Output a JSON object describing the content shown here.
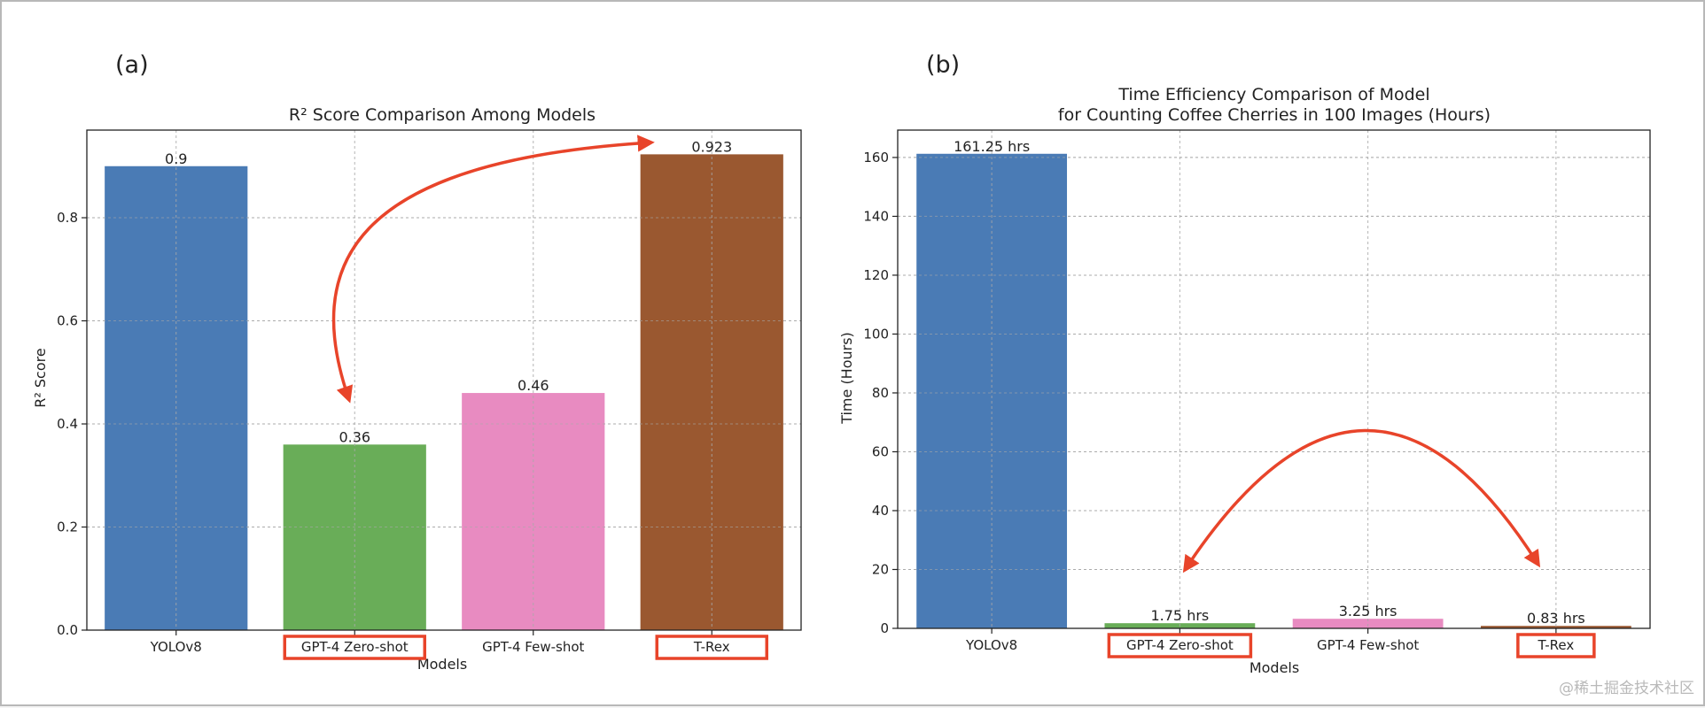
{
  "watermark": "@稀土掘金技术社区",
  "highlight_color": "#e8442a",
  "chart_data": [
    {
      "panel": "(a)",
      "type": "bar",
      "title": [
        "R² Score Comparison Among Models"
      ],
      "xlabel": "Models",
      "ylabel": "R² Score",
      "categories": [
        "YOLOv8",
        "GPT-4 Zero-shot",
        "GPT-4 Few-shot",
        "T-Rex"
      ],
      "values": [
        0.9,
        0.36,
        0.46,
        0.923
      ],
      "value_labels": [
        "0.9",
        "0.36",
        "0.46",
        "0.923"
      ],
      "colors": [
        "#4a7bb5",
        "#69ad58",
        "#e88bc1",
        "#9a5830"
      ],
      "ylim": [
        0,
        0.97
      ],
      "yticks": [
        0.0,
        0.2,
        0.4,
        0.6,
        0.8
      ],
      "ytick_labels": [
        "0.0",
        "0.2",
        "0.4",
        "0.6",
        "0.8"
      ],
      "grid": true,
      "highlighted_categories": [
        "GPT-4 Zero-shot",
        "T-Rex"
      ],
      "arrow": {
        "between": [
          "T-Rex",
          "GPT-4 Zero-shot"
        ],
        "style": "double-headed curved"
      }
    },
    {
      "panel": "(b)",
      "type": "bar",
      "title": [
        "Time Efficiency Comparison of Model",
        "for Counting Coffee Cherries in 100 Images (Hours)"
      ],
      "xlabel": "Models",
      "ylabel": "Time (Hours)",
      "categories": [
        "YOLOv8",
        "GPT-4 Zero-shot",
        "GPT-4 Few-shot",
        "T-Rex"
      ],
      "values": [
        161.25,
        1.75,
        3.25,
        0.83
      ],
      "value_labels": [
        "161.25 hrs",
        "1.75 hrs",
        "3.25 hrs",
        "0.83 hrs"
      ],
      "colors": [
        "#4a7bb5",
        "#69ad58",
        "#e88bc1",
        "#9a5830"
      ],
      "ylim": [
        0,
        169.3
      ],
      "yticks": [
        0,
        20,
        40,
        60,
        80,
        100,
        120,
        140,
        160
      ],
      "ytick_labels": [
        "0",
        "20",
        "40",
        "60",
        "80",
        "100",
        "120",
        "140",
        "160"
      ],
      "grid": true,
      "highlighted_categories": [
        "GPT-4 Zero-shot",
        "T-Rex"
      ],
      "arrow": {
        "between": [
          "GPT-4 Zero-shot",
          "T-Rex"
        ],
        "style": "double-headed curved"
      }
    }
  ]
}
